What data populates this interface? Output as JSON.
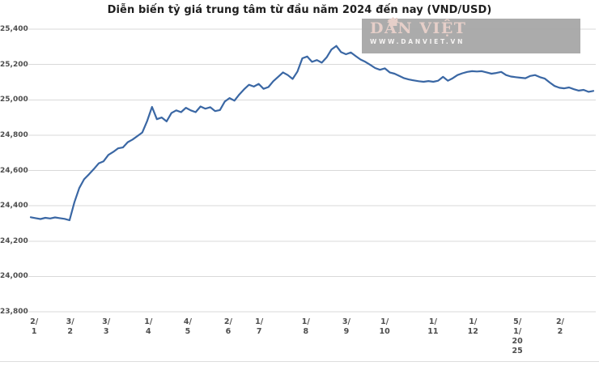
{
  "page": {
    "background": "#ffffff"
  },
  "chart_data": {
    "type": "line",
    "title": "Diễn biến tỷ giá trung tâm từ đầu năm 2024 đến nay (VND/USD)",
    "xlabel": "",
    "ylabel": "",
    "unit": "VND/USD",
    "ylim": [
      23800,
      25400
    ],
    "y_tick_step": 200,
    "grid": true,
    "legend": "none",
    "line_color": "#3a67a4",
    "gridline_color": "#d9d9d9",
    "y_ticks": [
      "25,400",
      "25,200",
      "25,000",
      "24,800",
      "24,600",
      "24,400",
      "24,200",
      "24,000",
      "23,800"
    ],
    "x_ticks": [
      {
        "label": "2/\n1",
        "pos": 0.006
      },
      {
        "label": "3/\n2",
        "pos": 0.07
      },
      {
        "label": "3/\n3",
        "pos": 0.134
      },
      {
        "label": "1/\n4",
        "pos": 0.209
      },
      {
        "label": "4/\n5",
        "pos": 0.279
      },
      {
        "label": "2/\n6",
        "pos": 0.351
      },
      {
        "label": "1/\n7",
        "pos": 0.406
      },
      {
        "label": "1/\n8",
        "pos": 0.489
      },
      {
        "label": "3/\n9",
        "pos": 0.561
      },
      {
        "label": "1/\n10",
        "pos": 0.629
      },
      {
        "label": "1/\n11",
        "pos": 0.715
      },
      {
        "label": "1/\n12",
        "pos": 0.786
      },
      {
        "label": "5/\n1/\n20\n25",
        "pos": 0.865
      },
      {
        "label": "2/\n2",
        "pos": 0.941
      }
    ],
    "series": [
      {
        "name": "Tỷ giá trung tâm (VND/USD)",
        "values": [
          24335,
          24330,
          24325,
          24332,
          24328,
          24334,
          24330,
          24326,
          24318,
          24420,
          24500,
          24550,
          24578,
          24608,
          24640,
          24652,
          24688,
          24705,
          24725,
          24730,
          24760,
          24775,
          24795,
          24815,
          24880,
          24960,
          24890,
          24900,
          24878,
          24925,
          24940,
          24930,
          24955,
          24940,
          24930,
          24962,
          24950,
          24958,
          24936,
          24942,
          24990,
          25010,
          24995,
          25030,
          25060,
          25085,
          25075,
          25090,
          25062,
          25072,
          25105,
          25130,
          25155,
          25140,
          25118,
          25160,
          25235,
          25245,
          25215,
          25225,
          25210,
          25240,
          25285,
          25305,
          25270,
          25258,
          25268,
          25248,
          25228,
          25215,
          25198,
          25180,
          25170,
          25178,
          25155,
          25148,
          25135,
          25122,
          25115,
          25110,
          25105,
          25102,
          25106,
          25102,
          25108,
          25130,
          25108,
          25122,
          25140,
          25150,
          25158,
          25162,
          25160,
          25162,
          25155,
          25148,
          25152,
          25158,
          25140,
          25132,
          25128,
          25125,
          25122,
          25135,
          25140,
          25128,
          25120,
          25098,
          25078,
          25068,
          25065,
          25070,
          25060,
          25052,
          25056,
          25045,
          25050
        ]
      }
    ]
  },
  "watermark": {
    "brand": "DÂN VIỆT",
    "url": "WWW.DANVIET.VN",
    "house_icon": "house-icon",
    "box_color": "#a7a7a7"
  }
}
